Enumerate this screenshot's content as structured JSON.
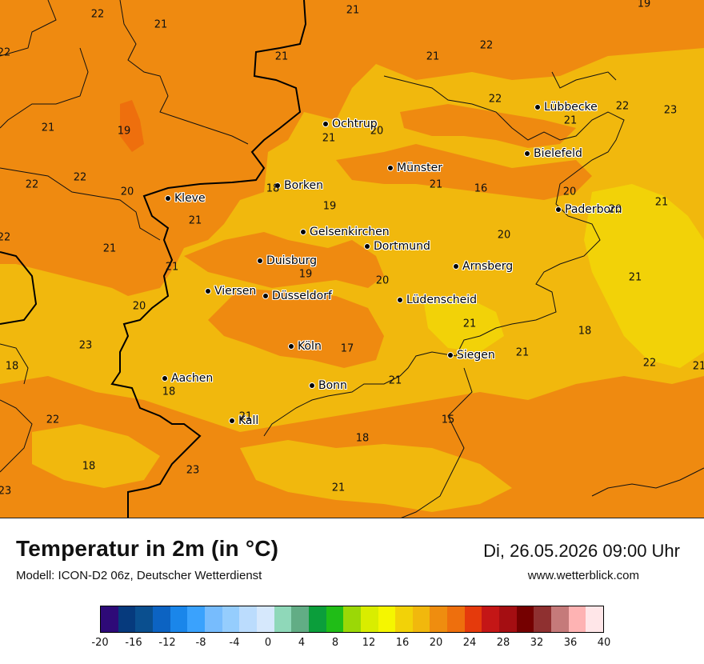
{
  "map": {
    "cities": [
      {
        "name": "Ochtrup"
      },
      {
        "name": "Lübbecke"
      },
      {
        "name": "Bielefeld"
      },
      {
        "name": "Münster"
      },
      {
        "name": "Borken"
      },
      {
        "name": "Kleve"
      },
      {
        "name": "Paderborn"
      },
      {
        "name": "Gelsenkirchen"
      },
      {
        "name": "Dortmund"
      },
      {
        "name": "Duisburg"
      },
      {
        "name": "Arnsberg"
      },
      {
        "name": "Viersen"
      },
      {
        "name": "Düsseldorf"
      },
      {
        "name": "Lüdenscheid"
      },
      {
        "name": "Köln"
      },
      {
        "name": "Siegen"
      },
      {
        "name": "Aachen"
      },
      {
        "name": "Bonn"
      },
      {
        "name": "Kall"
      }
    ],
    "values": [
      "22",
      "21",
      "21",
      "19",
      "22",
      "21",
      "21",
      "22",
      "22",
      "22",
      "23",
      "21",
      "19",
      "21",
      "20",
      "21",
      "22",
      "22",
      "20",
      "18",
      "21",
      "16",
      "20",
      "19",
      "21",
      "20",
      "21",
      "22",
      "20",
      "21",
      "21",
      "19",
      "20",
      "21",
      "20",
      "21",
      "18",
      "23",
      "17",
      "18",
      "21",
      "22",
      "21",
      "18",
      "21",
      "22",
      "15",
      "21",
      "18",
      "18",
      "23",
      "23",
      "21"
    ]
  },
  "title": "Temperatur in 2m (in °C)",
  "model": "Modell: ICON-D2 06z, Deutscher Wetterdienst",
  "datetime": "Di, 26.05.2026 09:00 Uhr",
  "website": "www.wetterblick.com",
  "colorbar": {
    "colors": [
      "#2e0a78",
      "#063a7d",
      "#0a4f8f",
      "#0c63c2",
      "#1a86ea",
      "#3aa2fd",
      "#77bcfd",
      "#95cdfd",
      "#bbdcfd",
      "#d6e8fc",
      "#8fd8b9",
      "#62ad85",
      "#0b9e3b",
      "#20bd17",
      "#9bd806",
      "#d9ed00",
      "#f5f600",
      "#f2d208",
      "#f1b80d",
      "#ef8d0f",
      "#ee6f0d",
      "#e53a0c",
      "#c41616",
      "#a50e12",
      "#750000",
      "#8f3030",
      "#c57a7a",
      "#feb3b3",
      "#ffe6e8"
    ],
    "ticks": [
      "-20",
      "-16",
      "-12",
      "-8",
      "-4",
      "0",
      "4",
      "8",
      "12",
      "16",
      "20",
      "24",
      "28",
      "32",
      "36",
      "40"
    ]
  }
}
